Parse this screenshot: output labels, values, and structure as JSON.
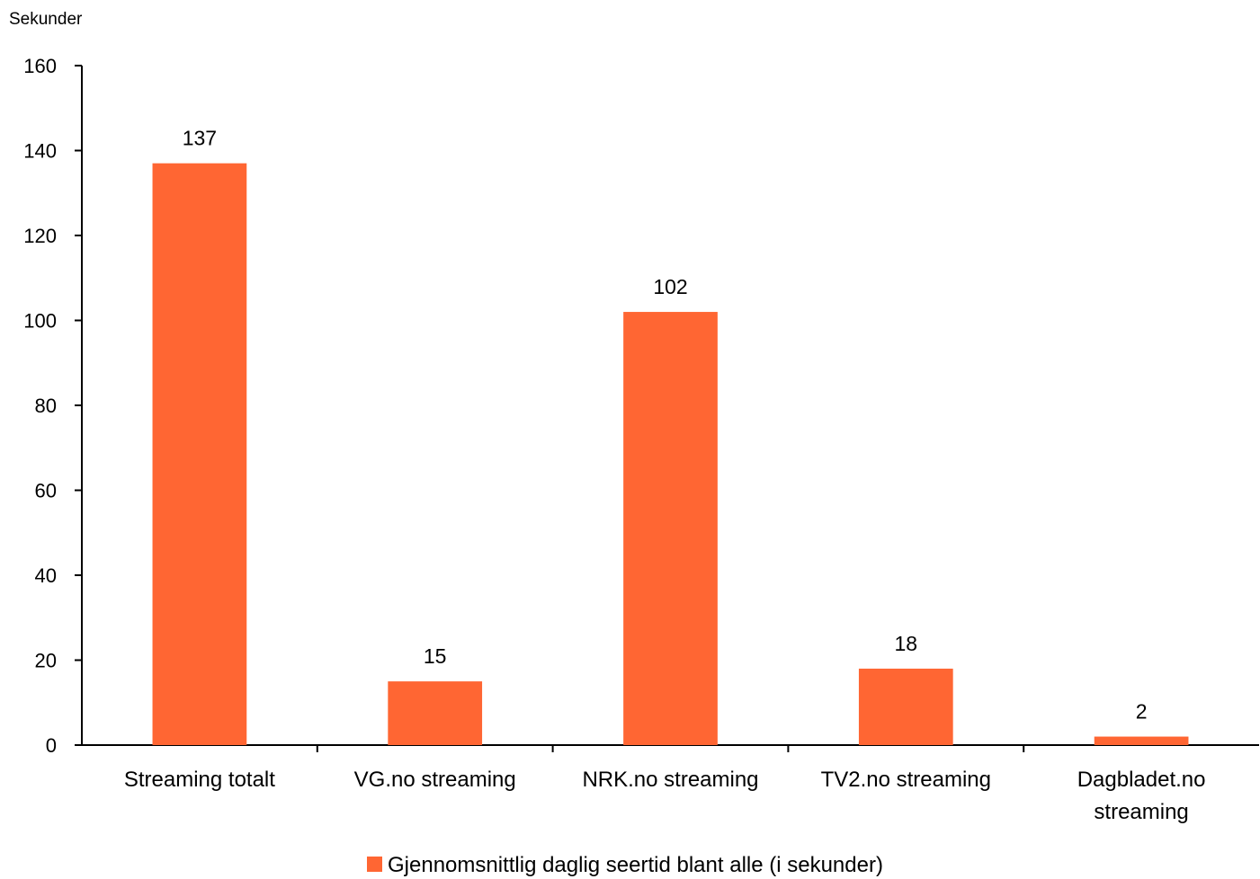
{
  "chart_data": {
    "type": "bar",
    "ylabel": "Sekunder",
    "categories": [
      [
        "Streaming totalt"
      ],
      [
        "VG.no streaming"
      ],
      [
        "NRK.no streaming"
      ],
      [
        "TV2.no streaming"
      ],
      [
        "Dagbladet.no",
        "streaming"
      ]
    ],
    "series": [
      {
        "name": "Gjennomsnittlig daglig seertid blant alle (i sekunder)",
        "values": [
          137,
          15,
          102,
          18,
          2
        ],
        "color": "#ff6633"
      }
    ],
    "ylim": [
      0,
      160
    ],
    "yticks": [
      0,
      20,
      40,
      60,
      80,
      100,
      120,
      140,
      160
    ],
    "grid": false,
    "data_labels": true,
    "legend_position": "bottom"
  }
}
